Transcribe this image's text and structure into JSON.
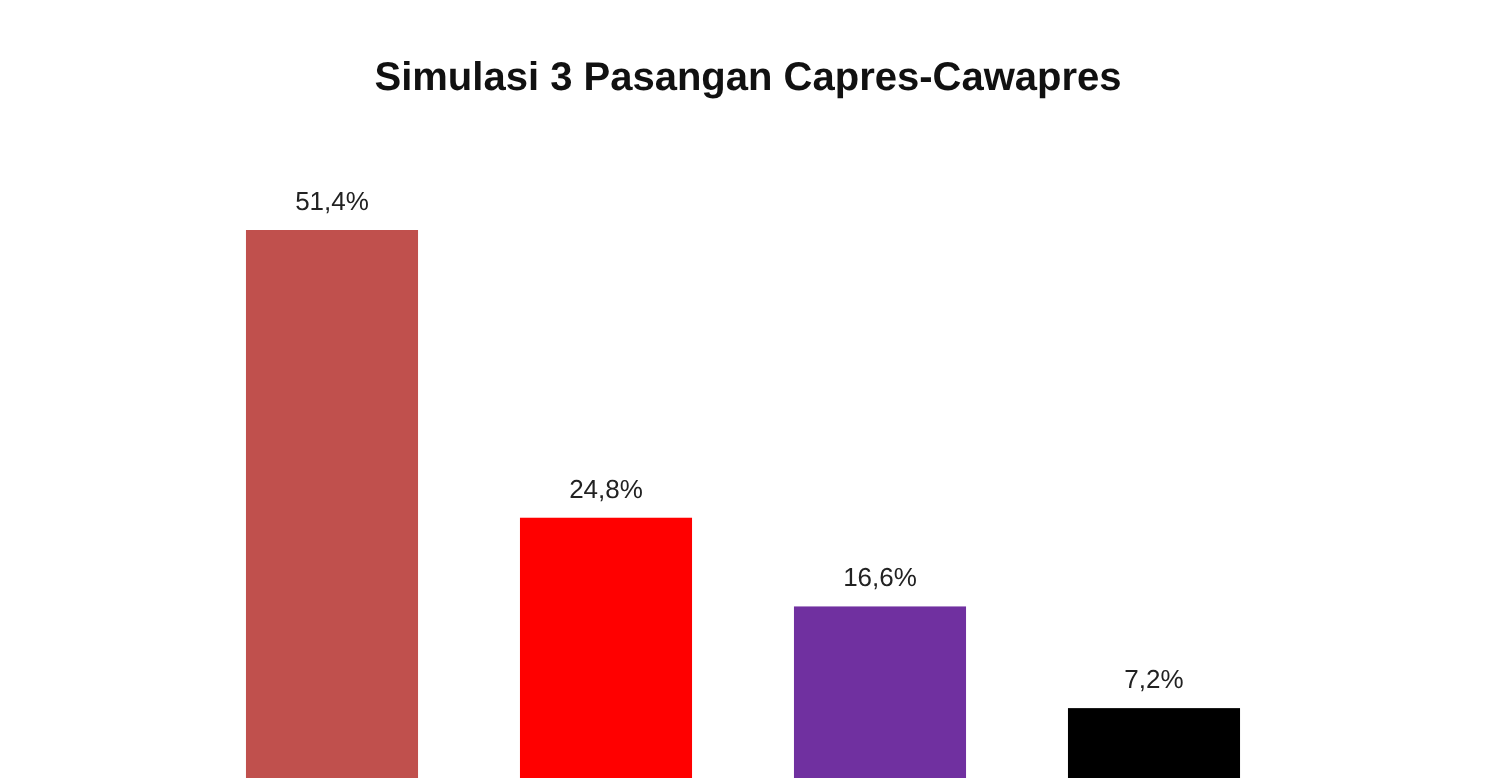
{
  "chart_data": {
    "type": "bar",
    "title": "Simulasi 3 Pasangan Capres-Cawapres",
    "categories": [
      null,
      null,
      null,
      null
    ],
    "values": [
      51.4,
      24.8,
      16.6,
      7.2
    ],
    "colors": [
      "#c0504d",
      "#ff0000",
      "#7030a0",
      "#000000"
    ],
    "value_labels": [
      "51,4%",
      "24,8%",
      "16,6%",
      "7,2%"
    ]
  }
}
